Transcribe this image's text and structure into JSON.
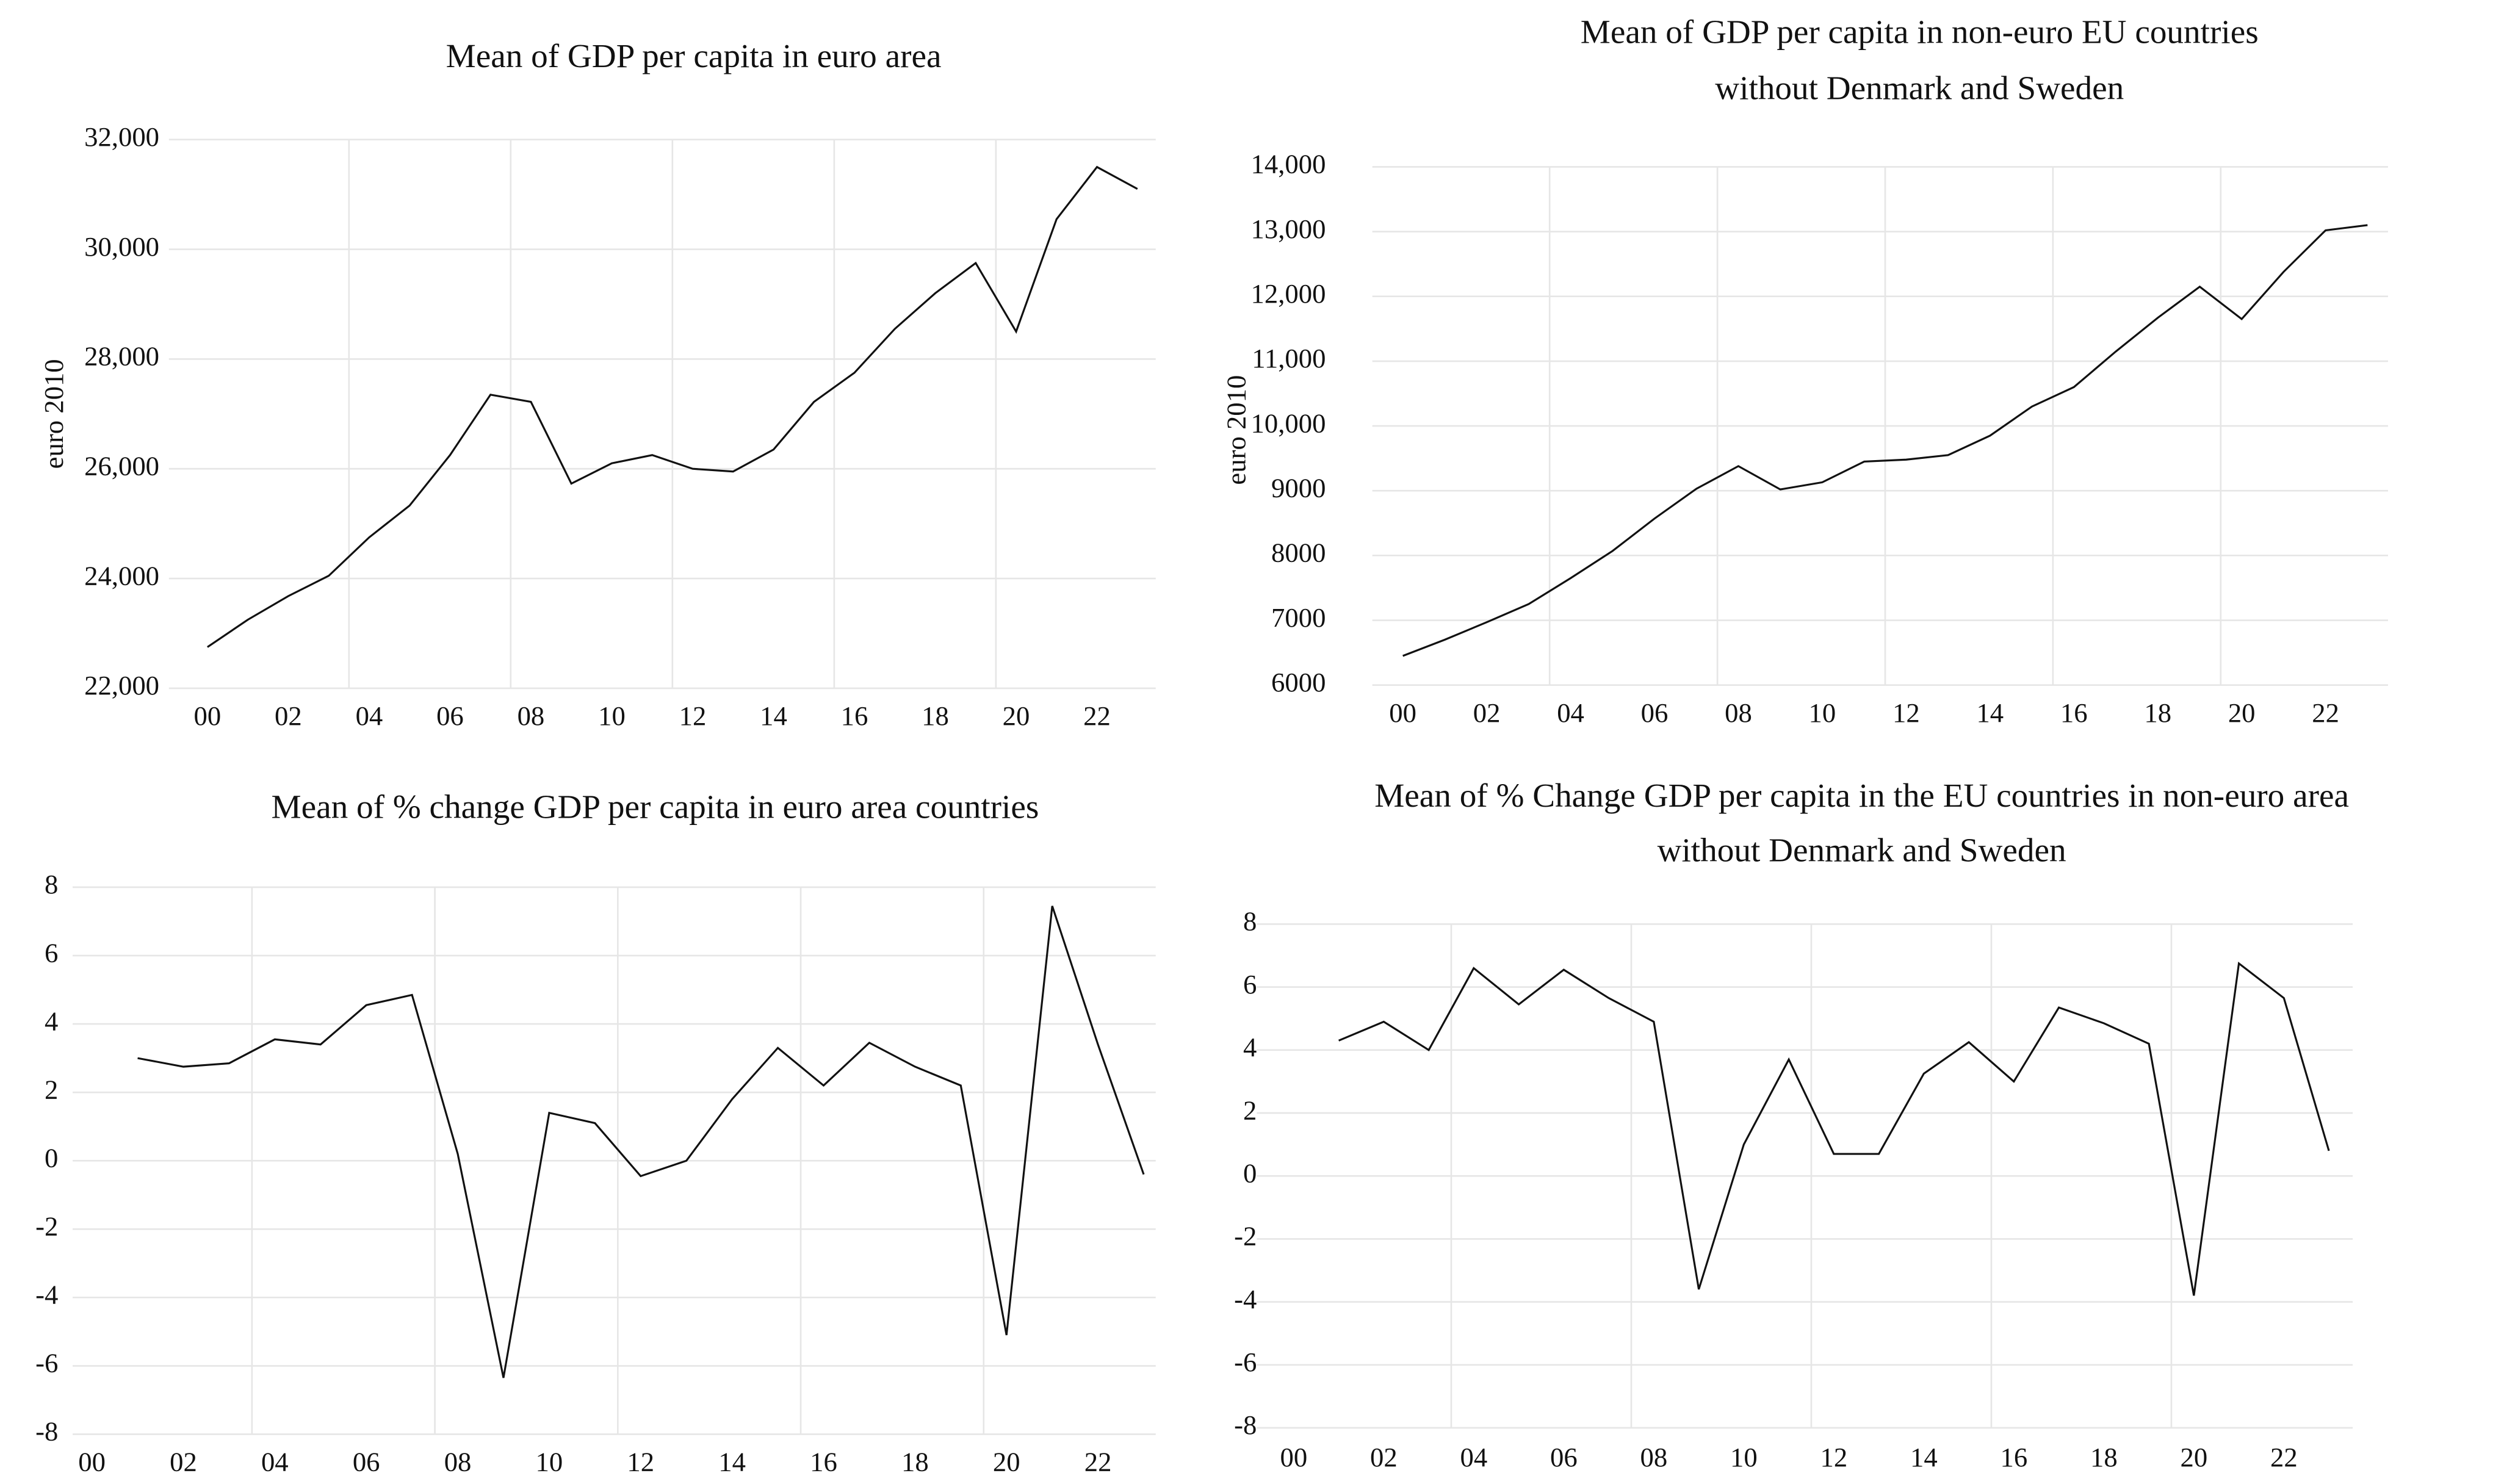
{
  "chart_data": [
    {
      "type": "line",
      "title": [
        "Mean of GDP per capita in euro area"
      ],
      "ylabel": "euro 2010",
      "categories": [
        "00",
        null,
        "02",
        null,
        "04",
        null,
        "06",
        null,
        "08",
        null,
        "10",
        null,
        "12",
        null,
        "14",
        null,
        "16",
        null,
        "18",
        null,
        "20",
        null,
        "22",
        null
      ],
      "values": [
        22750,
        23250,
        23680,
        24050,
        24750,
        25330,
        26250,
        27350,
        27220,
        25730,
        26100,
        26250,
        26000,
        25950,
        26350,
        27220,
        27750,
        28550,
        29200,
        29750,
        28500,
        30550,
        31500,
        31100
      ],
      "color": "#111111",
      "grid": true,
      "ylim": [
        22000,
        32000
      ],
      "yticks": [
        {
          "value": 22000,
          "label": "22,000"
        },
        {
          "value": 24000,
          "label": "24,000"
        },
        {
          "value": 26000,
          "label": "26,000"
        },
        {
          "value": 28000,
          "label": "28,000"
        },
        {
          "value": 30000,
          "label": "30,000"
        },
        {
          "value": 32000,
          "label": "32,000"
        }
      ]
    },
    {
      "type": "line",
      "title": [
        "Mean of GDP per capita in non-euro EU countries",
        "without Denmark and Sweden"
      ],
      "ylabel": "euro 2010",
      "categories": [
        "00",
        null,
        "02",
        null,
        "04",
        null,
        "06",
        null,
        "08",
        null,
        "10",
        null,
        "12",
        null,
        "14",
        null,
        "16",
        null,
        "18",
        null,
        "20",
        null,
        "22",
        null
      ],
      "values": [
        6450,
        6700,
        6970,
        7250,
        7650,
        8070,
        8570,
        9030,
        9380,
        9020,
        9130,
        9450,
        9480,
        9550,
        9850,
        10300,
        10600,
        11150,
        11670,
        12150,
        11650,
        12380,
        13020,
        13100
      ],
      "color": "#111111",
      "grid": true,
      "ylim": [
        6000,
        14000
      ],
      "yticks": [
        6000,
        7000,
        8000,
        9000,
        {
          "value": 10000,
          "label": "10,000"
        },
        {
          "value": 11000,
          "label": "11,000"
        },
        {
          "value": 12000,
          "label": "12,000"
        },
        {
          "value": 13000,
          "label": "13,000"
        },
        {
          "value": 14000,
          "label": "14,000"
        }
      ]
    },
    {
      "type": "line",
      "title": [
        "Mean of % change GDP per capita in euro area countries"
      ],
      "categories": [
        "00",
        null,
        "02",
        null,
        "04",
        null,
        "06",
        null,
        "08",
        null,
        "10",
        null,
        "12",
        null,
        "14",
        null,
        "16",
        null,
        "18",
        null,
        "20",
        null,
        "22",
        null
      ],
      "values": [
        null,
        3.0,
        2.75,
        2.85,
        3.55,
        3.4,
        4.55,
        4.85,
        0.2,
        -6.35,
        1.4,
        1.1,
        -0.45,
        0.0,
        1.8,
        3.3,
        2.2,
        3.45,
        2.75,
        2.2,
        -5.1,
        7.45,
        3.4,
        -0.4
      ],
      "color": "#111111",
      "grid": true,
      "ylim": [
        -8,
        8
      ],
      "yticks": [
        -8,
        -6,
        -4,
        -2,
        0,
        2,
        4,
        6,
        8
      ]
    },
    {
      "type": "line",
      "title": [
        "Mean of % Change GDP per capita in the EU countries in non-euro area",
        "without Denmark and Sweden"
      ],
      "categories": [
        "00",
        null,
        "02",
        null,
        "04",
        null,
        "06",
        null,
        "08",
        null,
        "10",
        null,
        "12",
        null,
        "14",
        null,
        "16",
        null,
        "18",
        null,
        "20",
        null,
        "22",
        null
      ],
      "values": [
        null,
        4.3,
        4.9,
        4.0,
        6.6,
        5.45,
        6.55,
        5.65,
        4.9,
        -3.6,
        1.0,
        3.7,
        0.7,
        0.7,
        3.25,
        4.25,
        3.0,
        5.35,
        4.85,
        4.2,
        -3.8,
        6.75,
        5.65,
        0.8
      ],
      "color": "#111111",
      "grid": true,
      "ylim": [
        -8,
        8
      ],
      "yticks": [
        -8,
        -6,
        -4,
        -2,
        0,
        2,
        4,
        6,
        8
      ]
    }
  ]
}
